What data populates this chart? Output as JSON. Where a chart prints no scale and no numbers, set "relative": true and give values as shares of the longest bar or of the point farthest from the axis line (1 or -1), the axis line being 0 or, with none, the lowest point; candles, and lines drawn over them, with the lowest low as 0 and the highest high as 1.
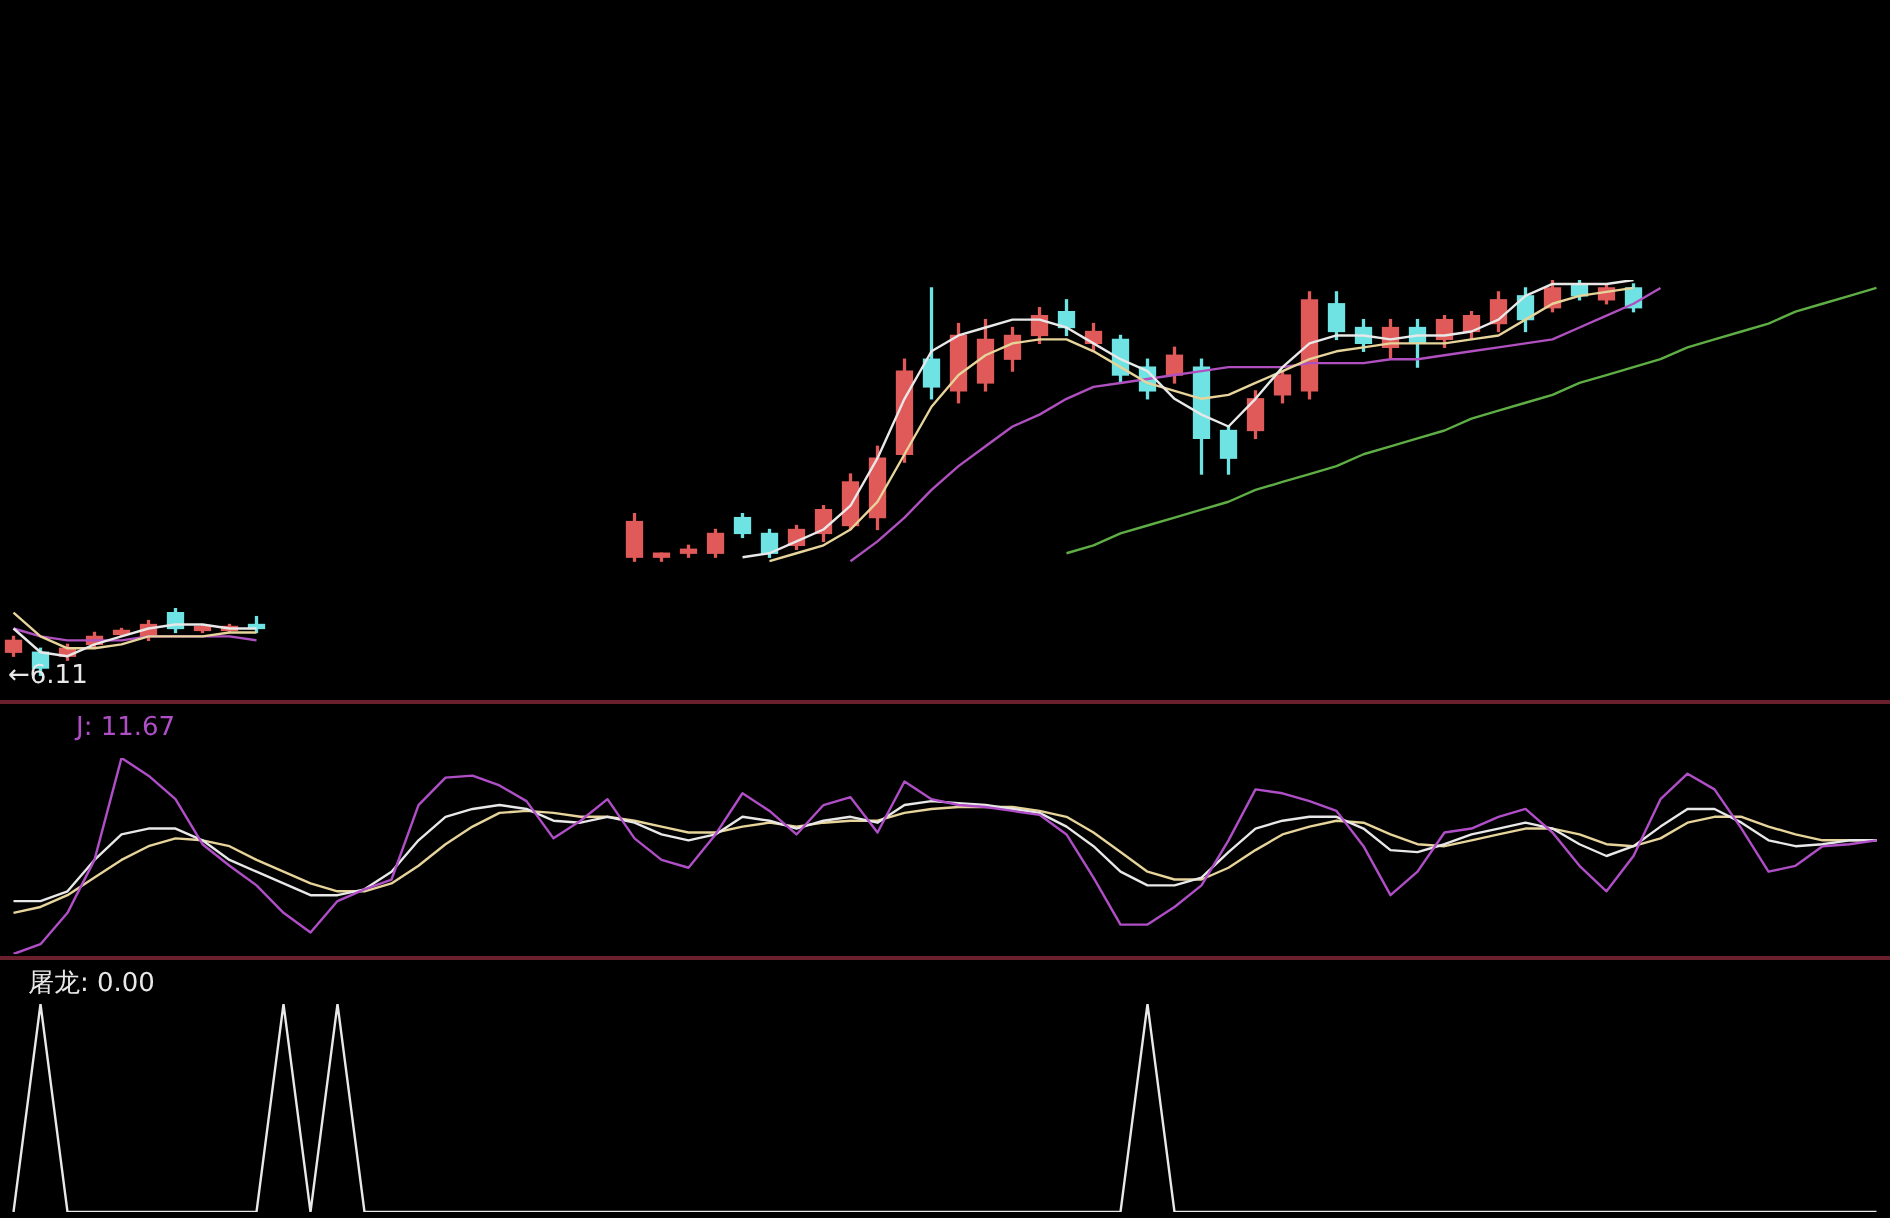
{
  "chart_data": [
    {
      "type": "candlestick",
      "relative": true,
      "categories": [
        null,
        null,
        null,
        null,
        null,
        null,
        null,
        null,
        null,
        null,
        null,
        null,
        null,
        null,
        null,
        null,
        null,
        null,
        null,
        null,
        null,
        null,
        null,
        null,
        null,
        null,
        null,
        null,
        null,
        null,
        null,
        null,
        null,
        null,
        null,
        null,
        null,
        null,
        null,
        null,
        null,
        null,
        null,
        null,
        null,
        null,
        null,
        null,
        null,
        null,
        null,
        null,
        null,
        null,
        null,
        null,
        null,
        null,
        null,
        null,
        null,
        null,
        null,
        null,
        null,
        null,
        null,
        null,
        null,
        null
      ],
      "ohlc": [
        [
          0.06,
          0.1,
          0.05,
          0.09
        ],
        [
          0.06,
          0.07,
          0.0,
          0.02
        ],
        [
          0.05,
          0.08,
          0.04,
          0.07
        ],
        [
          0.08,
          0.11,
          0.07,
          0.1
        ],
        [
          0.105,
          0.12,
          0.1,
          0.115
        ],
        [
          0.1,
          0.14,
          0.09,
          0.13
        ],
        [
          0.16,
          0.17,
          0.11,
          0.12
        ],
        [
          0.115,
          0.13,
          0.11,
          0.125
        ],
        [
          0.115,
          0.13,
          0.11,
          0.125
        ],
        [
          0.13,
          0.15,
          0.11,
          0.12
        ],
        null,
        null,
        null,
        null,
        null,
        null,
        null,
        null,
        null,
        null,
        null,
        null,
        null,
        [
          0.3,
          0.41,
          0.29,
          0.39
        ],
        [
          0.3,
          0.31,
          0.29,
          0.31
        ],
        [
          0.31,
          0.33,
          0.3,
          0.32
        ],
        [
          0.31,
          0.37,
          0.3,
          0.36
        ],
        [
          0.4,
          0.41,
          0.35,
          0.36
        ],
        [
          0.36,
          0.37,
          0.3,
          0.31
        ],
        [
          0.33,
          0.38,
          0.32,
          0.37
        ],
        [
          0.36,
          0.43,
          0.34,
          0.42
        ],
        [
          0.38,
          0.51,
          0.37,
          0.49
        ],
        [
          0.4,
          0.58,
          0.37,
          0.55
        ],
        [
          0.56,
          0.8,
          0.54,
          0.77
        ],
        [
          0.8,
          0.98,
          0.7,
          0.73
        ],
        [
          0.72,
          0.89,
          0.69,
          0.86
        ],
        [
          0.74,
          0.9,
          0.72,
          0.85
        ],
        [
          0.8,
          0.88,
          0.77,
          0.86
        ],
        [
          0.86,
          0.93,
          0.84,
          0.91
        ],
        [
          0.92,
          0.95,
          0.86,
          0.88
        ],
        [
          0.84,
          0.89,
          0.82,
          0.87
        ],
        [
          0.85,
          0.86,
          0.74,
          0.76
        ],
        [
          0.78,
          0.8,
          0.7,
          0.72
        ],
        [
          0.76,
          0.83,
          0.74,
          0.81
        ],
        [
          0.78,
          0.8,
          0.51,
          0.6
        ],
        [
          0.62,
          0.63,
          0.51,
          0.55
        ],
        [
          0.62,
          0.72,
          0.6,
          0.7
        ],
        [
          0.71,
          0.77,
          0.69,
          0.76
        ],
        [
          0.72,
          0.97,
          0.7,
          0.95
        ],
        [
          0.94,
          0.97,
          0.85,
          0.87
        ],
        [
          0.88,
          0.9,
          0.82,
          0.84
        ],
        [
          0.83,
          0.9,
          0.8,
          0.88
        ],
        [
          0.88,
          0.9,
          0.78,
          0.84
        ],
        [
          0.85,
          0.91,
          0.83,
          0.9
        ],
        [
          0.87,
          0.92,
          0.85,
          0.91
        ],
        [
          0.89,
          0.97,
          0.87,
          0.95
        ],
        [
          0.96,
          0.98,
          0.87,
          0.9
        ],
        [
          0.93,
          1.0,
          0.92,
          0.98
        ],
        [
          0.99,
          1.0,
          0.95,
          0.96
        ],
        [
          0.95,
          0.99,
          0.94,
          0.98
        ],
        [
          0.98,
          0.99,
          0.92,
          0.93
        ],
        null,
        null,
        null,
        null,
        null,
        null,
        null,
        null,
        null
      ],
      "colors": [
        "#e05a5a",
        "#6fe3e3",
        "#e05a5a",
        "#e05a5a",
        "#e05a5a",
        "#e05a5a",
        "#6fe3e3",
        "#e05a5a",
        "#e05a5a",
        "#6fe3e3",
        null,
        null,
        null,
        null,
        null,
        null,
        null,
        null,
        null,
        null,
        null,
        null,
        null,
        "#e05a5a",
        "#e05a5a",
        "#e05a5a",
        "#e05a5a",
        "#6fe3e3",
        "#6fe3e3",
        "#e05a5a",
        "#e05a5a",
        "#e05a5a",
        "#e05a5a",
        "#e05a5a",
        "#6fe3e3",
        "#e05a5a",
        "#e05a5a",
        "#e05a5a",
        "#e05a5a",
        "#6fe3e3",
        "#e05a5a",
        "#6fe3e3",
        "#6fe3e3",
        "#e05a5a",
        "#6fe3e3",
        "#6fe3e3",
        "#e05a5a",
        "#e05a5a",
        "#e05a5a",
        "#6fe3e3",
        "#6fe3e3",
        "#e05a5a",
        "#6fe3e3",
        "#e05a5a",
        "#e05a5a",
        "#e05a5a",
        "#6fe3e3",
        "#e05a5a",
        "#6fe3e3",
        "#e05a5a",
        "#6fe3e3",
        null,
        null,
        null,
        null,
        null,
        null,
        null,
        null,
        null
      ],
      "series": [
        {
          "type": "line",
          "color": "#e8e8e8",
          "values": [
            0.12,
            0.06,
            0.05,
            0.08,
            0.1,
            0.12,
            0.13,
            0.13,
            0.12,
            0.12,
            null,
            null,
            null,
            null,
            null,
            null,
            null,
            null,
            null,
            null,
            null,
            null,
            null,
            null,
            null,
            null,
            null,
            0.3,
            0.31,
            0.34,
            0.37,
            0.43,
            0.55,
            0.7,
            0.82,
            0.86,
            0.88,
            0.9,
            0.9,
            0.88,
            0.84,
            0.8,
            0.77,
            0.7,
            0.66,
            0.63,
            0.7,
            0.78,
            0.84,
            0.86,
            0.86,
            0.85,
            0.86,
            0.86,
            0.87,
            0.9,
            0.96,
            0.99,
            0.99,
            0.99,
            1.0,
            null,
            null,
            null,
            null,
            null,
            null,
            null,
            null,
            null
          ]
        },
        {
          "type": "line",
          "color": "#e6d49a",
          "values": [
            0.16,
            0.1,
            0.07,
            0.07,
            0.08,
            0.1,
            0.1,
            0.1,
            0.11,
            0.11,
            null,
            null,
            null,
            null,
            null,
            null,
            null,
            null,
            null,
            null,
            null,
            null,
            null,
            null,
            null,
            null,
            null,
            null,
            0.29,
            0.31,
            0.33,
            0.37,
            0.44,
            0.56,
            0.68,
            0.76,
            0.81,
            0.84,
            0.85,
            0.85,
            0.82,
            0.78,
            0.74,
            0.72,
            0.7,
            0.71,
            0.74,
            0.77,
            0.8,
            0.82,
            0.83,
            0.84,
            0.84,
            0.84,
            0.85,
            0.86,
            0.9,
            0.94,
            0.96,
            0.97,
            0.98,
            null,
            null,
            null,
            null,
            null,
            null,
            null,
            null,
            null
          ]
        },
        {
          "type": "line",
          "color": "#b050c0",
          "values": [
            0.12,
            0.1,
            0.09,
            0.09,
            0.09,
            0.1,
            0.1,
            0.1,
            0.1,
            0.09,
            null,
            null,
            null,
            null,
            null,
            null,
            null,
            null,
            null,
            null,
            null,
            null,
            null,
            null,
            null,
            null,
            null,
            null,
            null,
            null,
            null,
            0.29,
            0.34,
            0.4,
            0.47,
            0.53,
            0.58,
            0.63,
            0.66,
            0.7,
            0.73,
            0.74,
            0.75,
            0.76,
            0.77,
            0.78,
            0.78,
            0.78,
            0.79,
            0.79,
            0.79,
            0.8,
            0.8,
            0.81,
            0.82,
            0.83,
            0.84,
            0.85,
            0.88,
            0.91,
            0.94,
            0.98,
            null,
            null,
            null,
            null,
            null,
            null,
            null,
            null
          ]
        },
        {
          "type": "line",
          "color": "#5fae45",
          "values": [
            null,
            null,
            null,
            null,
            null,
            null,
            null,
            null,
            null,
            null,
            null,
            null,
            null,
            null,
            null,
            null,
            null,
            null,
            null,
            null,
            null,
            null,
            null,
            null,
            null,
            null,
            null,
            null,
            null,
            null,
            null,
            null,
            null,
            null,
            null,
            null,
            null,
            null,
            null,
            0.31,
            0.33,
            0.36,
            0.38,
            0.4,
            0.42,
            0.44,
            0.47,
            0.49,
            0.51,
            0.53,
            0.56,
            0.58,
            0.6,
            0.62,
            0.65,
            0.67,
            0.69,
            0.71,
            0.74,
            0.76,
            0.78,
            0.8,
            0.83,
            0.85,
            0.87,
            0.89,
            0.92,
            0.94,
            0.96,
            0.98
          ]
        }
      ],
      "annotations": [
        "←6.11"
      ]
    },
    {
      "type": "line",
      "relative": true,
      "categories": [
        null,
        null,
        null,
        null,
        null,
        null,
        null,
        null,
        null,
        null,
        null,
        null,
        null,
        null,
        null,
        null,
        null,
        null,
        null,
        null,
        null,
        null,
        null,
        null,
        null,
        null,
        null,
        null,
        null,
        null,
        null,
        null,
        null,
        null,
        null,
        null,
        null,
        null,
        null,
        null,
        null,
        null,
        null,
        null,
        null,
        null,
        null,
        null,
        null,
        null,
        null,
        null,
        null,
        null,
        null,
        null,
        null,
        null,
        null,
        null,
        null,
        null,
        null,
        null,
        null,
        null,
        null,
        null,
        null,
        null
      ],
      "series": [
        {
          "color": "#b04ec8",
          "values": [
            0.0,
            0.05,
            0.21,
            0.48,
            1.0,
            0.91,
            0.79,
            0.56,
            0.45,
            0.35,
            0.21,
            0.11,
            0.27,
            0.33,
            0.38,
            0.76,
            0.9,
            0.91,
            0.86,
            0.78,
            0.59,
            0.68,
            0.79,
            0.59,
            0.48,
            0.44,
            0.61,
            0.82,
            0.73,
            0.61,
            0.76,
            0.8,
            0.62,
            0.88,
            0.79,
            0.76,
            0.75,
            0.73,
            0.71,
            0.61,
            0.39,
            0.15,
            0.15,
            0.24,
            0.35,
            0.58,
            0.84,
            0.82,
            0.78,
            0.73,
            0.55,
            0.3,
            0.42,
            0.62,
            0.64,
            0.7,
            0.74,
            0.62,
            0.45,
            0.32,
            0.5,
            0.79,
            0.92,
            0.84,
            0.64,
            0.42,
            0.45,
            0.55,
            0.56,
            0.58
          ]
        },
        {
          "color": "#e8e8e8",
          "values": [
            0.27,
            0.27,
            0.32,
            0.48,
            0.61,
            0.64,
            0.64,
            0.58,
            0.48,
            0.42,
            0.36,
            0.3,
            0.3,
            0.33,
            0.42,
            0.58,
            0.7,
            0.74,
            0.76,
            0.74,
            0.68,
            0.67,
            0.7,
            0.67,
            0.61,
            0.58,
            0.61,
            0.7,
            0.68,
            0.64,
            0.68,
            0.7,
            0.67,
            0.76,
            0.78,
            0.77,
            0.76,
            0.74,
            0.72,
            0.65,
            0.55,
            0.42,
            0.35,
            0.35,
            0.39,
            0.52,
            0.64,
            0.68,
            0.7,
            0.7,
            0.64,
            0.53,
            0.52,
            0.56,
            0.61,
            0.64,
            0.67,
            0.64,
            0.56,
            0.5,
            0.55,
            0.65,
            0.74,
            0.74,
            0.67,
            0.58,
            0.55,
            0.56,
            0.58,
            0.58
          ]
        },
        {
          "color": "#e6d49a",
          "values": [
            0.21,
            0.24,
            0.3,
            0.39,
            0.48,
            0.55,
            0.59,
            0.58,
            0.55,
            0.48,
            0.42,
            0.36,
            0.32,
            0.32,
            0.36,
            0.45,
            0.56,
            0.65,
            0.72,
            0.73,
            0.72,
            0.7,
            0.7,
            0.68,
            0.65,
            0.62,
            0.62,
            0.65,
            0.67,
            0.65,
            0.67,
            0.68,
            0.68,
            0.72,
            0.74,
            0.75,
            0.75,
            0.75,
            0.73,
            0.7,
            0.62,
            0.52,
            0.42,
            0.38,
            0.38,
            0.44,
            0.53,
            0.61,
            0.65,
            0.68,
            0.67,
            0.61,
            0.56,
            0.55,
            0.58,
            0.61,
            0.64,
            0.64,
            0.61,
            0.56,
            0.55,
            0.59,
            0.67,
            0.7,
            0.7,
            0.65,
            0.61,
            0.58,
            0.58,
            0.58
          ]
        }
      ],
      "annotations": [
        "J: 11.67"
      ]
    },
    {
      "type": "line",
      "relative": true,
      "categories": [
        null,
        null,
        null,
        null,
        null,
        null,
        null,
        null,
        null,
        null,
        null,
        null,
        null,
        null,
        null,
        null,
        null,
        null,
        null,
        null,
        null,
        null,
        null,
        null,
        null,
        null,
        null,
        null,
        null,
        null,
        null,
        null,
        null,
        null,
        null,
        null,
        null,
        null,
        null,
        null,
        null,
        null,
        null,
        null,
        null,
        null,
        null,
        null,
        null,
        null,
        null,
        null,
        null,
        null,
        null,
        null,
        null,
        null,
        null,
        null,
        null,
        null,
        null,
        null,
        null,
        null,
        null,
        null,
        null,
        null
      ],
      "series": [
        {
          "color": "#e8e8e8",
          "values": [
            0,
            1,
            0,
            0,
            0,
            0,
            0,
            0,
            0,
            0,
            1,
            0,
            1,
            0,
            0,
            0,
            0,
            0,
            0,
            0,
            0,
            0,
            0,
            0,
            0,
            0,
            0,
            0,
            0,
            0,
            0,
            0,
            0,
            0,
            0,
            0,
            0,
            0,
            0,
            0,
            0,
            0,
            1,
            0,
            0,
            0,
            0,
            0,
            0,
            0,
            0,
            0,
            0,
            0,
            0,
            0,
            0,
            0,
            0,
            0,
            0,
            0,
            0,
            0,
            0,
            0,
            0,
            0,
            0,
            0
          ]
        }
      ],
      "annotations": [
        "屠龙: 0.00"
      ]
    }
  ]
}
